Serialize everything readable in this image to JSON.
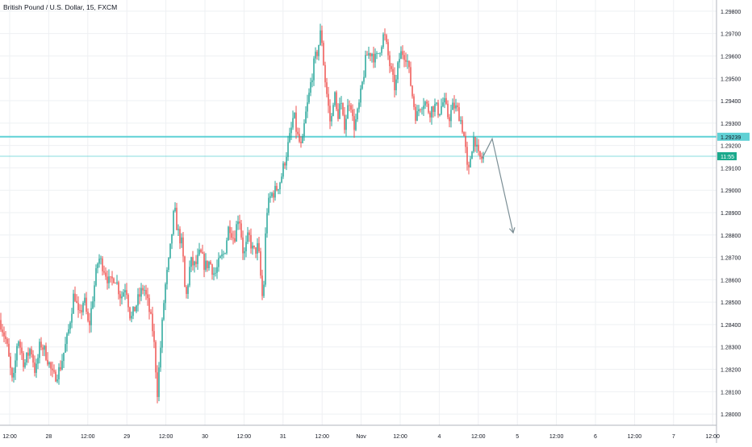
{
  "chart_data": {
    "type": "candlestick",
    "title": "British Pound / U.S. Dollar, 15, FXCM",
    "ylim": [
      1.2795,
      1.2985
    ],
    "y_ticks": [
      "1.29800",
      "1.29700",
      "1.29600",
      "1.29500",
      "1.29400",
      "1.29300",
      "1.29200",
      "1.29100",
      "1.29000",
      "1.28900",
      "1.28800",
      "1.28700",
      "1.28600",
      "1.28500",
      "1.28400",
      "1.28300",
      "1.28200",
      "1.28100",
      "1.28000"
    ],
    "x_ticks": [
      "12:00",
      "28",
      "12:00",
      "29",
      "12:00",
      "30",
      "12:00",
      "31",
      "12:00",
      "Nov",
      "12:00",
      "4",
      "12:00",
      "5",
      "12:00",
      "6",
      "12:00",
      "7",
      "12:00"
    ],
    "price_label": "1.29239",
    "time_label": "11:55",
    "current_price": 1.29145,
    "levels": [
      1.29239,
      1.29152
    ],
    "grid": true,
    "legend": "none",
    "colors": {
      "up": "#26a69a",
      "down": "#ef5350",
      "line": "#5fd1d5",
      "label": "#1ba98c",
      "projection": "#7c8f96"
    },
    "anchors": [
      [
        0,
        1.2842
      ],
      [
        8,
        1.2832
      ],
      [
        16,
        1.2812
      ],
      [
        22,
        1.2835
      ],
      [
        30,
        1.2822
      ],
      [
        38,
        1.283
      ],
      [
        44,
        1.2818
      ],
      [
        50,
        1.2832
      ],
      [
        58,
        1.2826
      ],
      [
        66,
        1.2816
      ],
      [
        74,
        1.282
      ],
      [
        84,
        1.2835
      ],
      [
        92,
        1.2855
      ],
      [
        98,
        1.2842
      ],
      [
        104,
        1.2852
      ],
      [
        110,
        1.2838
      ],
      [
        116,
        1.2855
      ],
      [
        122,
        1.287
      ],
      [
        128,
        1.2866
      ],
      [
        136,
        1.2858
      ],
      [
        142,
        1.2862
      ],
      [
        150,
        1.2852
      ],
      [
        156,
        1.2858
      ],
      [
        162,
        1.2842
      ],
      [
        166,
        1.2846
      ],
      [
        172,
        1.2852
      ],
      [
        178,
        1.2857
      ],
      [
        184,
        1.2848
      ],
      [
        190,
        1.2836
      ],
      [
        195,
        1.281
      ],
      [
        200,
        1.2835
      ],
      [
        204,
        1.2855
      ],
      [
        210,
        1.287
      ],
      [
        216,
        1.2892
      ],
      [
        220,
        1.2882
      ],
      [
        226,
        1.2875
      ],
      [
        230,
        1.285
      ],
      [
        236,
        1.2868
      ],
      [
        242,
        1.2866
      ],
      [
        248,
        1.2872
      ],
      [
        254,
        1.2866
      ],
      [
        260,
        1.2868
      ],
      [
        266,
        1.2862
      ],
      [
        272,
        1.2868
      ],
      [
        278,
        1.2872
      ],
      [
        284,
        1.2885
      ],
      [
        290,
        1.2878
      ],
      [
        296,
        1.289
      ],
      [
        302,
        1.287
      ],
      [
        308,
        1.288
      ],
      [
        314,
        1.2872
      ],
      [
        320,
        1.2875
      ],
      [
        326,
        1.2848
      ],
      [
        330,
        1.289
      ],
      [
        336,
        1.2898
      ],
      [
        342,
        1.29
      ],
      [
        348,
        1.2905
      ],
      [
        354,
        1.2915
      ],
      [
        360,
        1.2925
      ],
      [
        364,
        1.2934
      ],
      [
        368,
        1.2925
      ],
      [
        374,
        1.2918
      ],
      [
        378,
        1.2932
      ],
      [
        382,
        1.294
      ],
      [
        386,
        1.295
      ],
      [
        390,
        1.2958
      ],
      [
        394,
        1.2963
      ],
      [
        398,
        1.2972
      ],
      [
        402,
        1.2952
      ],
      [
        406,
        1.294
      ],
      [
        410,
        1.2928
      ],
      [
        414,
        1.2945
      ],
      [
        418,
        1.2932
      ],
      [
        422,
        1.294
      ],
      [
        426,
        1.2928
      ],
      [
        430,
        1.2935
      ],
      [
        434,
        1.2942
      ],
      [
        438,
        1.2928
      ],
      [
        442,
        1.2932
      ],
      [
        446,
        1.294
      ],
      [
        450,
        1.295
      ],
      [
        454,
        1.296
      ],
      [
        460,
        1.2962
      ],
      [
        466,
        1.2958
      ],
      [
        472,
        1.2965
      ],
      [
        476,
        1.297
      ],
      [
        480,
        1.2962
      ],
      [
        486,
        1.295
      ],
      [
        490,
        1.2945
      ],
      [
        494,
        1.2958
      ],
      [
        498,
        1.2962
      ],
      [
        504,
        1.296
      ],
      [
        508,
        1.295
      ],
      [
        512,
        1.294
      ],
      [
        516,
        1.2932
      ],
      [
        520,
        1.2938
      ],
      [
        526,
        1.294
      ],
      [
        532,
        1.2935
      ],
      [
        538,
        1.2938
      ],
      [
        544,
        1.2935
      ],
      [
        550,
        1.294
      ],
      [
        556,
        1.2932
      ],
      [
        562,
        1.2938
      ],
      [
        568,
        1.2935
      ],
      [
        572,
        1.293
      ],
      [
        576,
        1.2922
      ],
      [
        580,
        1.2905
      ],
      [
        584,
        1.2918
      ],
      [
        588,
        1.2925
      ],
      [
        592,
        1.2915
      ],
      [
        596,
        1.2914
      ],
      [
        600,
        1.29145
      ]
    ],
    "projection": [
      [
        598,
        1.29145
      ],
      [
        610,
        1.2923
      ],
      [
        636,
        1.2881
      ]
    ]
  }
}
